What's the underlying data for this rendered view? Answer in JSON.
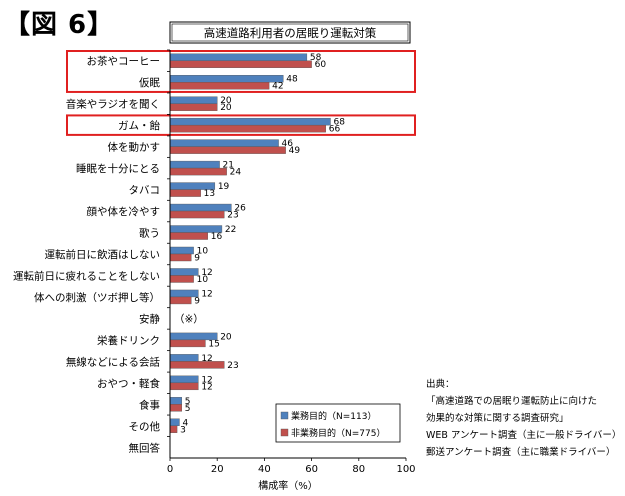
{
  "figure_label": "【図 6】",
  "chart_data": {
    "type": "bar",
    "orientation": "horizontal",
    "title": "高速道路利用者の居眠り運転対策",
    "xlabel": "構成率（%）",
    "ylabel": "",
    "xlim": [
      0,
      100
    ],
    "xticks": [
      "0",
      "20",
      "40",
      "60",
      "80",
      "100"
    ],
    "categories": [
      "お茶やコーヒー",
      "仮眠",
      "音楽やラジオを聞く",
      "ガム・飴",
      "体を動かす",
      "睡眠を十分にとる",
      "タバコ",
      "顔や体を冷やす",
      "歌う",
      "運転前日に飲酒はしない",
      "運転前日に疲れることをしない",
      "体への刺激（ツボ押し等）",
      "安静",
      "栄養ドリンク",
      "無線などによる会話",
      "おやつ・軽食",
      "食事",
      "その他",
      "無回答"
    ],
    "series": [
      {
        "name": "業務目的（N=113）",
        "color": "#4f81bd",
        "values": [
          58,
          48,
          20,
          68,
          46,
          21,
          19,
          26,
          22,
          10,
          12,
          12,
          null,
          20,
          12,
          12,
          5,
          4,
          null
        ]
      },
      {
        "name": "非業務目的（N=775）",
        "color": "#c0504d",
        "values": [
          60,
          42,
          20,
          66,
          49,
          24,
          13,
          23,
          16,
          9,
          10,
          9,
          null,
          15,
          23,
          12,
          5,
          3,
          null
        ]
      }
    ],
    "annotations": [
      {
        "category": "安静",
        "text": "（※）"
      }
    ],
    "highlighted_categories": [
      "お茶やコーヒー",
      "仮眠",
      "ガム・飴"
    ],
    "highlight_color": "#e02020",
    "legend_placement": "bottom-right",
    "grid": false
  },
  "source": {
    "heading": "出典：",
    "lines": [
      "「高速道路での居眠り運転防止に向けた",
      "効果的な対策に関する調査研究」",
      "WEB アンケート調査（主に一般ドライバー）",
      "郵送アンケート調査（主に職業ドライバー）"
    ]
  }
}
